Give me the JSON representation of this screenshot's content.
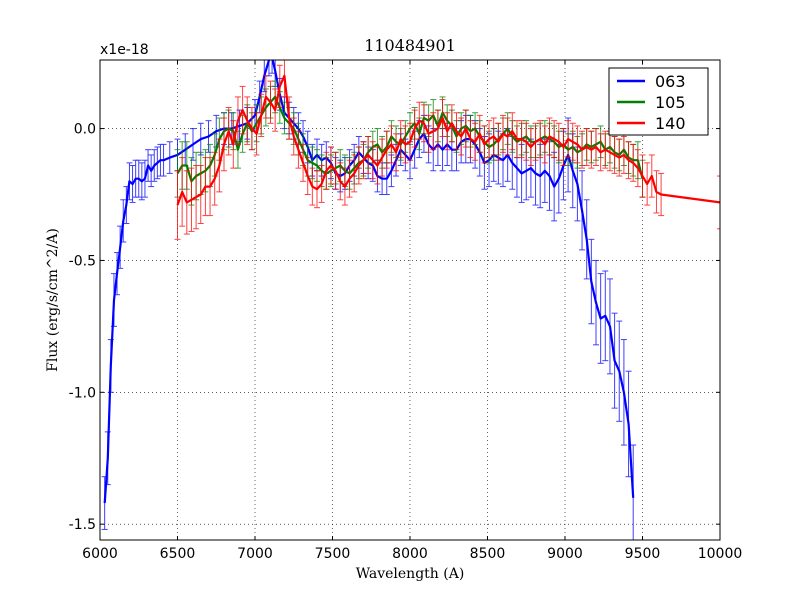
{
  "chart_data": {
    "type": "line",
    "title": "110484901",
    "xlabel": "Wavelength (A)",
    "ylabel": "Flux (erg/s/cm^2/A)",
    "offset_text": "x1e-18",
    "xlim": [
      6000,
      10000
    ],
    "ylim": [
      -1.56,
      0.26
    ],
    "xticks": [
      6000,
      6500,
      7000,
      7500,
      8000,
      8500,
      9000,
      9500,
      10000
    ],
    "xtick_labels": [
      "6000",
      "6500",
      "7000",
      "7500",
      "8000",
      "8500",
      "9000",
      "9500",
      "10000"
    ],
    "yticks": [
      0.0,
      -0.5,
      -1.0,
      -1.5
    ],
    "ytick_labels": [
      "0.0",
      "-0.5",
      "-1.0",
      "-1.5"
    ],
    "grid": true,
    "legend_position": "top-right",
    "series": [
      {
        "name": "063",
        "color": "#0000ff",
        "x": [
          6030,
          6050,
          6070,
          6090,
          6110,
          6130,
          6150,
          6170,
          6190,
          6210,
          6230,
          6250,
          6270,
          6290,
          6310,
          6330,
          6350,
          6370,
          6390,
          6410,
          6450,
          6500,
          6550,
          6600,
          6650,
          6700,
          6750,
          6800,
          6850,
          6900,
          6950,
          7000,
          7030,
          7060,
          7090,
          7110,
          7130,
          7160,
          7190,
          7220,
          7250,
          7280,
          7310,
          7340,
          7370,
          7400,
          7430,
          7460,
          7490,
          7520,
          7550,
          7580,
          7610,
          7640,
          7670,
          7700,
          7730,
          7760,
          7790,
          7820,
          7850,
          7880,
          7910,
          7940,
          7970,
          8000,
          8030,
          8060,
          8090,
          8120,
          8150,
          8180,
          8210,
          8240,
          8270,
          8300,
          8330,
          8360,
          8390,
          8420,
          8450,
          8480,
          8510,
          8540,
          8570,
          8600,
          8630,
          8660,
          8690,
          8720,
          8750,
          8780,
          8810,
          8840,
          8870,
          8900,
          8930,
          8960,
          8990,
          9020,
          9050,
          9080,
          9110,
          9140,
          9170,
          9200,
          9230,
          9260,
          9290,
          9320,
          9350,
          9380,
          9410,
          9440
        ],
        "values": [
          -1.42,
          -1.25,
          -0.9,
          -0.65,
          -0.55,
          -0.45,
          -0.35,
          -0.29,
          -0.2,
          -0.21,
          -0.19,
          -0.19,
          -0.2,
          -0.19,
          -0.14,
          -0.16,
          -0.14,
          -0.13,
          -0.12,
          -0.12,
          -0.11,
          -0.1,
          -0.08,
          -0.06,
          -0.04,
          -0.03,
          -0.01,
          0.0,
          0.0,
          0.01,
          0.02,
          0.05,
          0.12,
          0.2,
          0.26,
          0.27,
          0.22,
          0.13,
          0.06,
          0.04,
          0.02,
          0.0,
          -0.03,
          -0.07,
          -0.12,
          -0.1,
          -0.12,
          -0.11,
          -0.13,
          -0.17,
          -0.18,
          -0.17,
          -0.14,
          -0.12,
          -0.09,
          -0.11,
          -0.13,
          -0.14,
          -0.18,
          -0.19,
          -0.19,
          -0.16,
          -0.12,
          -0.08,
          -0.1,
          -0.12,
          -0.08,
          -0.04,
          -0.02,
          -0.06,
          -0.08,
          -0.06,
          -0.08,
          -0.06,
          -0.08,
          -0.08,
          -0.05,
          -0.04,
          -0.04,
          -0.06,
          -0.09,
          -0.13,
          -0.12,
          -0.1,
          -0.11,
          -0.12,
          -0.1,
          -0.13,
          -0.15,
          -0.17,
          -0.16,
          -0.15,
          -0.17,
          -0.18,
          -0.16,
          -0.18,
          -0.22,
          -0.19,
          -0.14,
          -0.1,
          -0.16,
          -0.21,
          -0.31,
          -0.42,
          -0.58,
          -0.66,
          -0.72,
          -0.71,
          -0.75,
          -0.88,
          -0.92,
          -1.0,
          -1.12,
          -1.4
        ],
        "errors": [
          0.1,
          0.1,
          0.1,
          0.1,
          0.08,
          0.08,
          0.08,
          0.07,
          0.07,
          0.07,
          0.07,
          0.07,
          0.07,
          0.07,
          0.06,
          0.06,
          0.06,
          0.06,
          0.06,
          0.06,
          0.06,
          0.06,
          0.06,
          0.06,
          0.06,
          0.06,
          0.06,
          0.06,
          0.06,
          0.06,
          0.06,
          0.06,
          0.06,
          0.06,
          0.06,
          0.06,
          0.06,
          0.06,
          0.06,
          0.06,
          0.06,
          0.06,
          0.06,
          0.06,
          0.06,
          0.06,
          0.06,
          0.06,
          0.06,
          0.06,
          0.06,
          0.06,
          0.06,
          0.06,
          0.06,
          0.06,
          0.06,
          0.06,
          0.06,
          0.06,
          0.06,
          0.06,
          0.06,
          0.06,
          0.06,
          0.07,
          0.07,
          0.07,
          0.07,
          0.07,
          0.08,
          0.08,
          0.08,
          0.08,
          0.08,
          0.08,
          0.08,
          0.09,
          0.09,
          0.09,
          0.09,
          0.1,
          0.1,
          0.1,
          0.1,
          0.1,
          0.1,
          0.1,
          0.11,
          0.11,
          0.11,
          0.11,
          0.12,
          0.12,
          0.12,
          0.13,
          0.13,
          0.13,
          0.13,
          0.14,
          0.14,
          0.14,
          0.15,
          0.15,
          0.16,
          0.16,
          0.17,
          0.17,
          0.18,
          0.18,
          0.19,
          0.2,
          0.2,
          0.2
        ]
      },
      {
        "name": "105",
        "color": "#008000",
        "x": [
          6500,
          6530,
          6560,
          6590,
          6620,
          6650,
          6680,
          6710,
          6740,
          6770,
          6800,
          6830,
          6860,
          6890,
          6920,
          6950,
          6980,
          7010,
          7040,
          7070,
          7100,
          7130,
          7160,
          7190,
          7220,
          7250,
          7280,
          7310,
          7340,
          7370,
          7400,
          7430,
          7460,
          7490,
          7520,
          7550,
          7580,
          7610,
          7640,
          7670,
          7700,
          7730,
          7760,
          7790,
          7820,
          7850,
          7880,
          7910,
          7940,
          7970,
          8000,
          8030,
          8060,
          8090,
          8120,
          8150,
          8180,
          8210,
          8240,
          8270,
          8300,
          8330,
          8360,
          8390,
          8420,
          8450,
          8480,
          8510,
          8540,
          8570,
          8600,
          8630,
          8660,
          8690,
          8720,
          8750,
          8780,
          8810,
          8840,
          8870,
          8900,
          8930,
          8960,
          8990,
          9020,
          9050,
          9080,
          9110,
          9140,
          9170,
          9200,
          9230,
          9260,
          9290,
          9320,
          9350,
          9380,
          9410,
          9440,
          9470,
          9500
        ],
        "values": [
          -0.17,
          -0.14,
          -0.14,
          -0.2,
          -0.18,
          -0.17,
          -0.16,
          -0.14,
          -0.1,
          -0.04,
          -0.01,
          0.0,
          -0.01,
          -0.08,
          -0.02,
          0.02,
          -0.01,
          0.02,
          0.05,
          0.08,
          0.1,
          0.12,
          0.08,
          0.04,
          0.02,
          0.0,
          -0.04,
          -0.08,
          -0.12,
          -0.13,
          -0.14,
          -0.16,
          -0.17,
          -0.16,
          -0.15,
          -0.14,
          -0.16,
          -0.17,
          -0.15,
          -0.13,
          -0.12,
          -0.09,
          -0.07,
          -0.06,
          -0.09,
          -0.07,
          -0.03,
          -0.05,
          -0.06,
          -0.03,
          0.0,
          0.02,
          -0.02,
          0.04,
          0.03,
          0.05,
          0.01,
          0.06,
          0.03,
          0.01,
          -0.03,
          0.0,
          0.01,
          -0.01,
          0.0,
          -0.03,
          -0.05,
          -0.07,
          -0.06,
          -0.04,
          -0.02,
          0.0,
          -0.03,
          -0.05,
          -0.04,
          -0.03,
          -0.05,
          -0.05,
          -0.04,
          -0.03,
          -0.04,
          -0.05,
          -0.07,
          -0.06,
          -0.08,
          -0.07,
          -0.09,
          -0.08,
          -0.06,
          -0.07,
          -0.06,
          -0.05,
          -0.08,
          -0.07,
          -0.09,
          -0.1,
          -0.08,
          -0.11,
          -0.12,
          -0.12,
          -0.19
        ],
        "errors": [
          0.09,
          0.09,
          0.09,
          0.09,
          0.09,
          0.08,
          0.08,
          0.08,
          0.08,
          0.08,
          0.07,
          0.07,
          0.07,
          0.07,
          0.07,
          0.07,
          0.07,
          0.07,
          0.07,
          0.07,
          0.06,
          0.06,
          0.06,
          0.06,
          0.06,
          0.06,
          0.06,
          0.06,
          0.06,
          0.06,
          0.06,
          0.06,
          0.06,
          0.06,
          0.06,
          0.06,
          0.06,
          0.06,
          0.06,
          0.06,
          0.06,
          0.06,
          0.06,
          0.06,
          0.06,
          0.06,
          0.06,
          0.06,
          0.06,
          0.06,
          0.06,
          0.06,
          0.06,
          0.06,
          0.06,
          0.06,
          0.06,
          0.06,
          0.06,
          0.06,
          0.06,
          0.06,
          0.06,
          0.06,
          0.06,
          0.06,
          0.06,
          0.06,
          0.06,
          0.06,
          0.06,
          0.06,
          0.06,
          0.06,
          0.06,
          0.06,
          0.06,
          0.06,
          0.06,
          0.06,
          0.06,
          0.06,
          0.06,
          0.06,
          0.06,
          0.06,
          0.06,
          0.06,
          0.06,
          0.06,
          0.06,
          0.06,
          0.06,
          0.06,
          0.06,
          0.06,
          0.06,
          0.06,
          0.06,
          0.07,
          0.07
        ]
      },
      {
        "name": "140",
        "color": "#ff0000",
        "x": [
          6500,
          6530,
          6560,
          6590,
          6620,
          6650,
          6680,
          6710,
          6740,
          6770,
          6800,
          6830,
          6860,
          6890,
          6920,
          6950,
          6980,
          7010,
          7040,
          7070,
          7100,
          7130,
          7160,
          7190,
          7220,
          7250,
          7280,
          7310,
          7340,
          7370,
          7400,
          7430,
          7460,
          7490,
          7520,
          7550,
          7580,
          7610,
          7640,
          7670,
          7700,
          7730,
          7760,
          7790,
          7820,
          7850,
          7880,
          7910,
          7940,
          7970,
          8000,
          8030,
          8060,
          8090,
          8120,
          8150,
          8180,
          8210,
          8240,
          8270,
          8300,
          8330,
          8360,
          8390,
          8420,
          8450,
          8480,
          8510,
          8540,
          8570,
          8600,
          8630,
          8660,
          8690,
          8720,
          8750,
          8780,
          8810,
          8840,
          8870,
          8900,
          8930,
          8960,
          8990,
          9020,
          9050,
          9080,
          9110,
          9140,
          9170,
          9200,
          9230,
          9260,
          9290,
          9320,
          9350,
          9380,
          9410,
          9440,
          9470,
          9500,
          9530,
          9560,
          9590,
          9620,
          10000
        ],
        "values": [
          -0.29,
          -0.24,
          -0.28,
          -0.27,
          -0.26,
          -0.25,
          -0.22,
          -0.22,
          -0.19,
          -0.14,
          -0.06,
          -0.01,
          -0.06,
          0.03,
          0.07,
          0.03,
          0.0,
          -0.02,
          0.05,
          0.12,
          0.1,
          0.07,
          0.16,
          0.2,
          0.04,
          -0.03,
          -0.08,
          -0.13,
          -0.18,
          -0.22,
          -0.23,
          -0.21,
          -0.16,
          -0.14,
          -0.16,
          -0.2,
          -0.22,
          -0.19,
          -0.17,
          -0.14,
          -0.12,
          -0.1,
          -0.12,
          -0.14,
          -0.11,
          -0.08,
          -0.06,
          -0.09,
          -0.04,
          -0.06,
          -0.05,
          0.0,
          0.03,
          0.02,
          -0.02,
          -0.01,
          0.0,
          0.04,
          -0.01,
          0.02,
          -0.01,
          -0.03,
          0.0,
          -0.04,
          -0.05,
          -0.02,
          -0.06,
          -0.04,
          -0.03,
          -0.05,
          -0.02,
          -0.03,
          -0.01,
          -0.04,
          -0.04,
          -0.05,
          -0.07,
          -0.05,
          -0.04,
          -0.06,
          -0.03,
          -0.04,
          -0.05,
          -0.07,
          -0.04,
          -0.05,
          -0.06,
          -0.08,
          -0.07,
          -0.08,
          -0.07,
          -0.09,
          -0.08,
          -0.09,
          -0.1,
          -0.11,
          -0.1,
          -0.12,
          -0.13,
          -0.15,
          -0.18,
          -0.21,
          -0.18,
          -0.24,
          -0.25,
          -0.28
        ],
        "errors": [
          0.13,
          0.13,
          0.12,
          0.12,
          0.12,
          0.11,
          0.11,
          0.11,
          0.1,
          0.1,
          0.1,
          0.09,
          0.09,
          0.09,
          0.09,
          0.09,
          0.08,
          0.08,
          0.08,
          0.08,
          0.08,
          0.08,
          0.08,
          0.08,
          0.08,
          0.07,
          0.07,
          0.07,
          0.07,
          0.07,
          0.07,
          0.07,
          0.07,
          0.07,
          0.07,
          0.07,
          0.07,
          0.07,
          0.07,
          0.07,
          0.07,
          0.07,
          0.07,
          0.07,
          0.07,
          0.07,
          0.07,
          0.07,
          0.07,
          0.07,
          0.07,
          0.07,
          0.07,
          0.07,
          0.07,
          0.07,
          0.07,
          0.07,
          0.07,
          0.07,
          0.07,
          0.07,
          0.07,
          0.07,
          0.07,
          0.07,
          0.07,
          0.07,
          0.07,
          0.07,
          0.07,
          0.07,
          0.07,
          0.07,
          0.07,
          0.07,
          0.07,
          0.07,
          0.07,
          0.07,
          0.07,
          0.07,
          0.07,
          0.07,
          0.07,
          0.07,
          0.07,
          0.07,
          0.07,
          0.07,
          0.07,
          0.07,
          0.07,
          0.07,
          0.07,
          0.07,
          0.07,
          0.07,
          0.07,
          0.07,
          0.08,
          0.08,
          0.08,
          0.08,
          0.08,
          0.1
        ]
      }
    ]
  }
}
